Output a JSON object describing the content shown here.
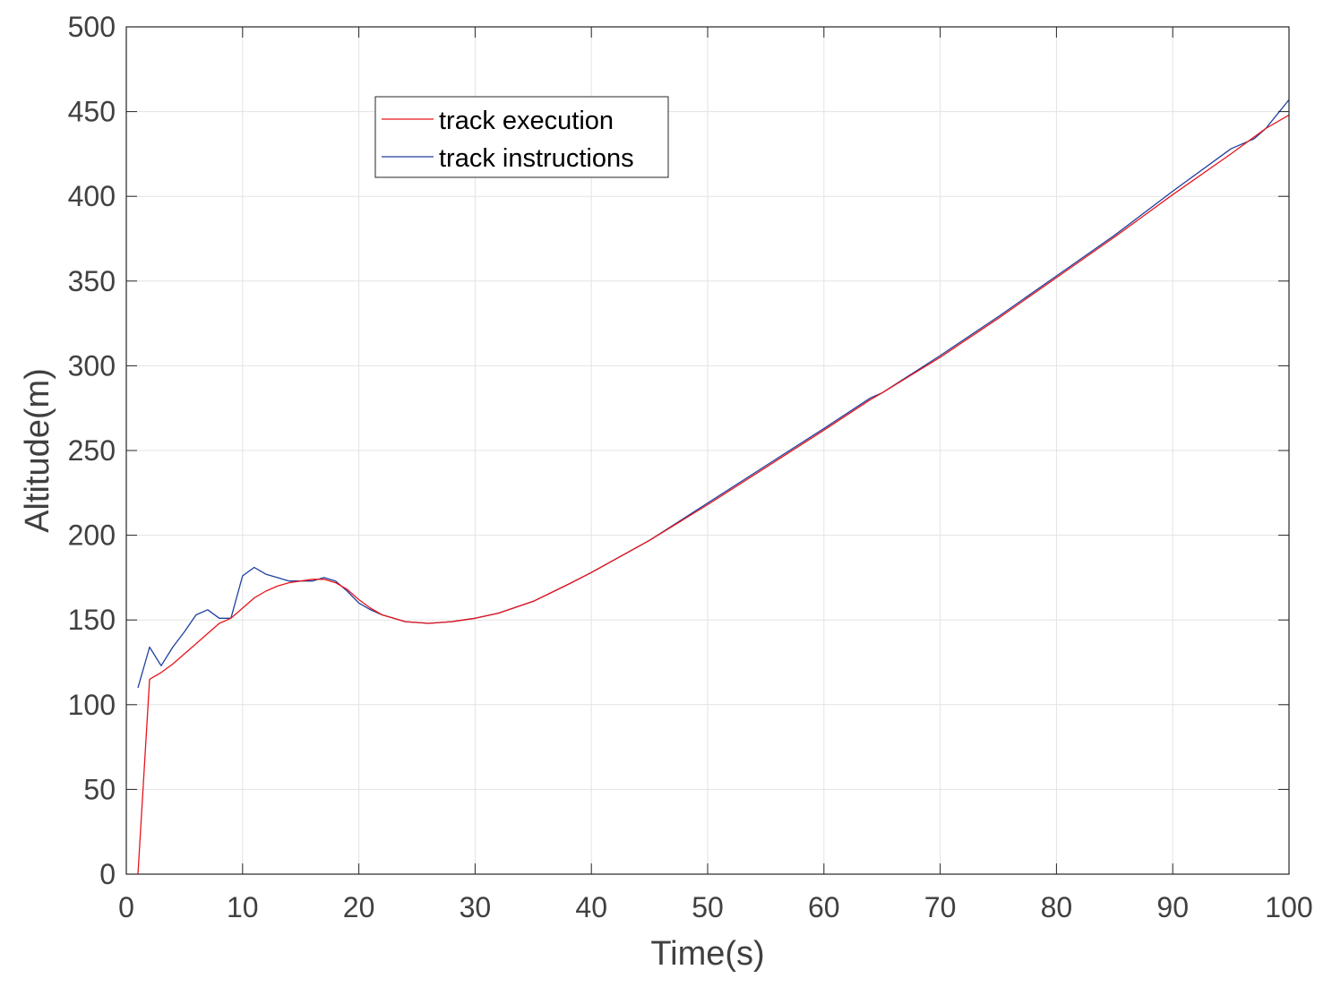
{
  "chart_data": {
    "type": "line",
    "title": "",
    "xlabel": "Time(s)",
    "ylabel": "Altitude(m)",
    "xlim": [
      0,
      100
    ],
    "ylim": [
      0,
      500
    ],
    "xticks": [
      0,
      10,
      20,
      30,
      40,
      50,
      60,
      70,
      80,
      90,
      100
    ],
    "yticks": [
      0,
      50,
      100,
      150,
      200,
      250,
      300,
      350,
      400,
      450,
      500
    ],
    "xtick_labels": [
      "0",
      "10",
      "20",
      "30",
      "40",
      "50",
      "60",
      "70",
      "80",
      "90",
      "100"
    ],
    "ytick_labels": [
      "0",
      "50",
      "100",
      "150",
      "200",
      "250",
      "300",
      "350",
      "400",
      "450",
      "500"
    ],
    "grid": true,
    "legend_position": "top-left",
    "series": [
      {
        "name": "track execution",
        "color": "#e8141a",
        "points": [
          [
            1,
            0
          ],
          [
            2,
            115
          ],
          [
            3,
            119
          ],
          [
            4,
            124
          ],
          [
            5,
            130
          ],
          [
            6,
            136
          ],
          [
            7,
            142
          ],
          [
            8,
            148
          ],
          [
            9,
            151
          ],
          [
            10,
            157
          ],
          [
            11,
            163
          ],
          [
            12,
            167
          ],
          [
            13,
            170
          ],
          [
            14,
            172
          ],
          [
            15,
            173
          ],
          [
            16,
            174
          ],
          [
            17,
            174
          ],
          [
            18,
            172
          ],
          [
            19,
            168
          ],
          [
            20,
            162
          ],
          [
            21,
            157
          ],
          [
            22,
            153
          ],
          [
            23,
            151
          ],
          [
            24,
            149
          ],
          [
            25,
            148.5
          ],
          [
            26,
            148
          ],
          [
            27,
            148.5
          ],
          [
            28,
            149
          ],
          [
            29,
            150
          ],
          [
            30,
            151
          ],
          [
            32,
            154
          ],
          [
            35,
            161
          ],
          [
            38,
            171
          ],
          [
            40,
            178
          ],
          [
            45,
            197
          ],
          [
            50,
            218
          ],
          [
            55,
            240
          ],
          [
            60,
            262
          ],
          [
            64,
            280
          ],
          [
            65,
            284
          ],
          [
            70,
            305
          ],
          [
            75,
            328
          ],
          [
            80,
            352
          ],
          [
            85,
            376
          ],
          [
            90,
            401
          ],
          [
            95,
            425
          ],
          [
            98,
            440
          ],
          [
            100,
            448
          ]
        ]
      },
      {
        "name": "track instructions",
        "color": "#1f3f9e",
        "points": [
          [
            1,
            110
          ],
          [
            2,
            134
          ],
          [
            3,
            123
          ],
          [
            4,
            134
          ],
          [
            5,
            143
          ],
          [
            6,
            153
          ],
          [
            7,
            156
          ],
          [
            8,
            151
          ],
          [
            9,
            151
          ],
          [
            10,
            176
          ],
          [
            11,
            181
          ],
          [
            12,
            177
          ],
          [
            13,
            175
          ],
          [
            14,
            173
          ],
          [
            15,
            173
          ],
          [
            16,
            173
          ],
          [
            17,
            175
          ],
          [
            18,
            173
          ],
          [
            19,
            167
          ],
          [
            20,
            160
          ],
          [
            21,
            156
          ],
          [
            22,
            153
          ],
          [
            23,
            151
          ],
          [
            24,
            149
          ],
          [
            25,
            148.5
          ],
          [
            26,
            148
          ],
          [
            27,
            148.5
          ],
          [
            28,
            149
          ],
          [
            29,
            150
          ],
          [
            30,
            151
          ],
          [
            32,
            154
          ],
          [
            35,
            161
          ],
          [
            38,
            171
          ],
          [
            40,
            178
          ],
          [
            45,
            197
          ],
          [
            50,
            219
          ],
          [
            55,
            241
          ],
          [
            60,
            263
          ],
          [
            64,
            281
          ],
          [
            65,
            284
          ],
          [
            70,
            306
          ],
          [
            75,
            329
          ],
          [
            80,
            353
          ],
          [
            85,
            377
          ],
          [
            90,
            403
          ],
          [
            95,
            428
          ],
          [
            97,
            434
          ],
          [
            98,
            440
          ],
          [
            100,
            457
          ]
        ]
      }
    ]
  }
}
